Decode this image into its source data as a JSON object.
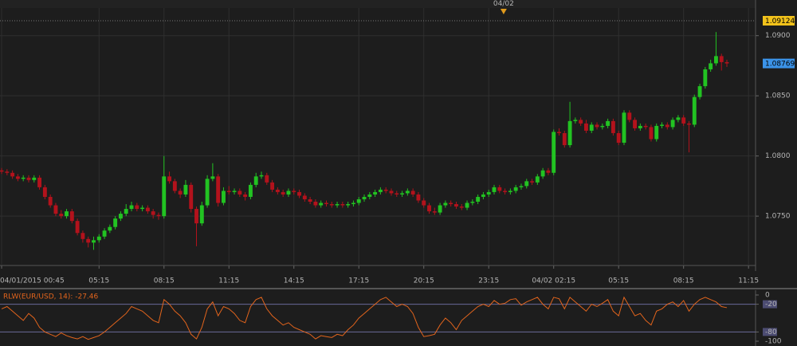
{
  "chart_data": {
    "type": "candlestick",
    "xlim": [
      -0.3,
      139.3
    ],
    "ylim": [
      1.0709,
      1.0923
    ],
    "grid": true,
    "up_color": "#22c322",
    "down_color": "#b3121c",
    "xticks": [
      {
        "value": 0,
        "label": "04/01/2015 00:45"
      },
      {
        "value": 18,
        "label": "05:15"
      },
      {
        "value": 30,
        "label": "08:15"
      },
      {
        "value": 42,
        "label": "11:15"
      },
      {
        "value": 54,
        "label": "14:15"
      },
      {
        "value": 66,
        "label": "17:15"
      },
      {
        "value": 78,
        "label": "20:15"
      },
      {
        "value": 90,
        "label": "23:15"
      },
      {
        "value": 102,
        "label": "04/02 02:15"
      },
      {
        "value": 114,
        "label": "05:15"
      },
      {
        "value": 126,
        "label": "08:15"
      },
      {
        "value": 138,
        "label": "11:15"
      }
    ],
    "yticks": [
      {
        "value": 1.075,
        "label": "1.0750"
      },
      {
        "value": 1.08,
        "label": "1.0800"
      },
      {
        "value": 1.085,
        "label": "1.0850"
      },
      {
        "value": 1.09,
        "label": "1.0900"
      }
    ],
    "day_marker": {
      "label": "04/02",
      "x": 92.75
    },
    "price_markers": [
      {
        "value": 1.09124,
        "color": "#f2c21b",
        "dotted": true
      },
      {
        "value": 1.08769,
        "color": "#3b93e8"
      }
    ],
    "ohlc": [
      [
        1.0788,
        1.079,
        1.0785,
        1.0787
      ],
      [
        1.0787,
        1.0789,
        1.0784,
        1.0786
      ],
      [
        1.0786,
        1.0788,
        1.0781,
        1.0783
      ],
      [
        1.0783,
        1.0785,
        1.0779,
        1.0781
      ],
      [
        1.0781,
        1.0784,
        1.0779,
        1.0782
      ],
      [
        1.0782,
        1.0784,
        1.0778,
        1.078
      ],
      [
        1.078,
        1.0784,
        1.0778,
        1.0782
      ],
      [
        1.0782,
        1.0784,
        1.0772,
        1.0774
      ],
      [
        1.0774,
        1.0776,
        1.0764,
        1.0766
      ],
      [
        1.0766,
        1.0768,
        1.0757,
        1.0759
      ],
      [
        1.0759,
        1.0761,
        1.075,
        1.0752
      ],
      [
        1.0752,
        1.0755,
        1.0748,
        1.075
      ],
      [
        1.075,
        1.0756,
        1.0748,
        1.0754
      ],
      [
        1.0754,
        1.0756,
        1.0744,
        1.0746
      ],
      [
        1.0746,
        1.0748,
        1.0734,
        1.0736
      ],
      [
        1.0736,
        1.0738,
        1.0728,
        1.0731
      ],
      [
        1.0731,
        1.0733,
        1.0724,
        1.0728
      ],
      [
        1.0728,
        1.0733,
        1.0722,
        1.073
      ],
      [
        1.073,
        1.0735,
        1.0728,
        1.0733
      ],
      [
        1.0733,
        1.074,
        1.0731,
        1.0738
      ],
      [
        1.0738,
        1.0743,
        1.0736,
        1.0741
      ],
      [
        1.0741,
        1.075,
        1.0739,
        1.0748
      ],
      [
        1.0748,
        1.0754,
        1.0746,
        1.0752
      ],
      [
        1.0752,
        1.076,
        1.075,
        1.0756
      ],
      [
        1.0756,
        1.0762,
        1.0754,
        1.0759
      ],
      [
        1.0759,
        1.0761,
        1.0754,
        1.0756
      ],
      [
        1.0756,
        1.0759,
        1.0754,
        1.0757
      ],
      [
        1.0757,
        1.0759,
        1.0752,
        1.0754
      ],
      [
        1.0754,
        1.0756,
        1.0748,
        1.0751
      ],
      [
        1.0751,
        1.0753,
        1.0747,
        1.075
      ],
      [
        1.075,
        1.08,
        1.0748,
        1.0783
      ],
      [
        1.0783,
        1.0787,
        1.0777,
        1.0779
      ],
      [
        1.0779,
        1.0781,
        1.0769,
        1.0771
      ],
      [
        1.0771,
        1.0773,
        1.0765,
        1.0768
      ],
      [
        1.0768,
        1.078,
        1.0766,
        1.0776
      ],
      [
        1.0776,
        1.0778,
        1.0753,
        1.0756
      ],
      [
        1.0756,
        1.0758,
        1.0725,
        1.0744
      ],
      [
        1.0744,
        1.0762,
        1.0742,
        1.0759
      ],
      [
        1.0759,
        1.0784,
        1.0757,
        1.0781
      ],
      [
        1.0781,
        1.0794,
        1.0779,
        1.0783
      ],
      [
        1.0783,
        1.0785,
        1.0758,
        1.0761
      ],
      [
        1.0761,
        1.0774,
        1.0759,
        1.0771
      ],
      [
        1.0771,
        1.0775,
        1.0768,
        1.077
      ],
      [
        1.077,
        1.0773,
        1.0768,
        1.0771
      ],
      [
        1.0771,
        1.0773,
        1.0766,
        1.0768
      ],
      [
        1.0768,
        1.077,
        1.0763,
        1.0766
      ],
      [
        1.0766,
        1.0778,
        1.0764,
        1.0776
      ],
      [
        1.0776,
        1.0786,
        1.0774,
        1.0783
      ],
      [
        1.0783,
        1.0787,
        1.0781,
        1.0784
      ],
      [
        1.0784,
        1.0786,
        1.0776,
        1.0778
      ],
      [
        1.0778,
        1.078,
        1.077,
        1.0772
      ],
      [
        1.0772,
        1.0774,
        1.0768,
        1.077
      ],
      [
        1.077,
        1.0772,
        1.0766,
        1.0768
      ],
      [
        1.0768,
        1.0773,
        1.0766,
        1.0771
      ],
      [
        1.0771,
        1.0773,
        1.0768,
        1.077
      ],
      [
        1.077,
        1.0772,
        1.0765,
        1.0767
      ],
      [
        1.0767,
        1.0769,
        1.0762,
        1.0764
      ],
      [
        1.0764,
        1.0766,
        1.076,
        1.0762
      ],
      [
        1.0762,
        1.0764,
        1.0757,
        1.0759
      ],
      [
        1.0759,
        1.0763,
        1.0757,
        1.0761
      ],
      [
        1.0761,
        1.0763,
        1.0758,
        1.076
      ],
      [
        1.076,
        1.0762,
        1.0757,
        1.0759
      ],
      [
        1.0759,
        1.0762,
        1.0757,
        1.076
      ],
      [
        1.076,
        1.0762,
        1.0757,
        1.0759
      ],
      [
        1.0759,
        1.0762,
        1.0757,
        1.076
      ],
      [
        1.076,
        1.0763,
        1.0758,
        1.0761
      ],
      [
        1.0761,
        1.0766,
        1.0759,
        1.0764
      ],
      [
        1.0764,
        1.0768,
        1.0762,
        1.0766
      ],
      [
        1.0766,
        1.077,
        1.0764,
        1.0768
      ],
      [
        1.0768,
        1.0772,
        1.0766,
        1.077
      ],
      [
        1.077,
        1.0774,
        1.0768,
        1.0772
      ],
      [
        1.0772,
        1.0774,
        1.0769,
        1.0771
      ],
      [
        1.0771,
        1.0773,
        1.0767,
        1.0769
      ],
      [
        1.0769,
        1.0771,
        1.0766,
        1.0768
      ],
      [
        1.0768,
        1.0771,
        1.0766,
        1.0769
      ],
      [
        1.0769,
        1.0773,
        1.0767,
        1.0771
      ],
      [
        1.0771,
        1.0773,
        1.0766,
        1.0768
      ],
      [
        1.0768,
        1.077,
        1.0761,
        1.0763
      ],
      [
        1.0763,
        1.0765,
        1.0757,
        1.0759
      ],
      [
        1.0759,
        1.0761,
        1.0752,
        1.0754
      ],
      [
        1.0754,
        1.0757,
        1.0751,
        1.0753
      ],
      [
        1.0753,
        1.0761,
        1.0751,
        1.0759
      ],
      [
        1.0759,
        1.0763,
        1.0757,
        1.0761
      ],
      [
        1.0761,
        1.0763,
        1.0758,
        1.076
      ],
      [
        1.076,
        1.0762,
        1.0756,
        1.0758
      ],
      [
        1.0758,
        1.076,
        1.0755,
        1.0757
      ],
      [
        1.0757,
        1.0763,
        1.0755,
        1.0761
      ],
      [
        1.0761,
        1.0764,
        1.0759,
        1.0762
      ],
      [
        1.0762,
        1.0768,
        1.076,
        1.0766
      ],
      [
        1.0766,
        1.077,
        1.0764,
        1.0768
      ],
      [
        1.0768,
        1.0772,
        1.0766,
        1.077
      ],
      [
        1.077,
        1.0776,
        1.0768,
        1.0774
      ],
      [
        1.0774,
        1.0776,
        1.0769,
        1.0771
      ],
      [
        1.0771,
        1.0773,
        1.0768,
        1.077
      ],
      [
        1.077,
        1.0773,
        1.0768,
        1.0771
      ],
      [
        1.0771,
        1.0776,
        1.0769,
        1.0774
      ],
      [
        1.0774,
        1.0777,
        1.0772,
        1.0775
      ],
      [
        1.0775,
        1.0781,
        1.0773,
        1.0779
      ],
      [
        1.0779,
        1.0781,
        1.0776,
        1.0778
      ],
      [
        1.0778,
        1.0785,
        1.0776,
        1.0783
      ],
      [
        1.0783,
        1.079,
        1.0781,
        1.0788
      ],
      [
        1.0788,
        1.079,
        1.0784,
        1.0786
      ],
      [
        1.0786,
        1.0822,
        1.0784,
        1.082
      ],
      [
        1.082,
        1.0823,
        1.0817,
        1.0819
      ],
      [
        1.0819,
        1.0821,
        1.0807,
        1.0809
      ],
      [
        1.0809,
        1.0845,
        1.0807,
        1.0829
      ],
      [
        1.0829,
        1.0832,
        1.0827,
        1.083
      ],
      [
        1.083,
        1.0832,
        1.0825,
        1.0827
      ],
      [
        1.0827,
        1.083,
        1.0819,
        1.0821
      ],
      [
        1.0821,
        1.0828,
        1.0819,
        1.0826
      ],
      [
        1.0826,
        1.0828,
        1.0822,
        1.0824
      ],
      [
        1.0824,
        1.0827,
        1.0822,
        1.0825
      ],
      [
        1.0825,
        1.0831,
        1.0823,
        1.0829
      ],
      [
        1.0829,
        1.0831,
        1.0817,
        1.0819
      ],
      [
        1.0819,
        1.0821,
        1.0809,
        1.0811
      ],
      [
        1.0811,
        1.0838,
        1.0809,
        1.0836
      ],
      [
        1.0836,
        1.0838,
        1.0828,
        1.083
      ],
      [
        1.083,
        1.0832,
        1.0821,
        1.0823
      ],
      [
        1.0823,
        1.0827,
        1.0821,
        1.0825
      ],
      [
        1.0825,
        1.0827,
        1.0822,
        1.0824
      ],
      [
        1.0824,
        1.0826,
        1.0812,
        1.0814
      ],
      [
        1.0814,
        1.0827,
        1.0812,
        1.0825
      ],
      [
        1.0825,
        1.0828,
        1.0823,
        1.0826
      ],
      [
        1.0826,
        1.0828,
        1.0822,
        1.0824
      ],
      [
        1.0824,
        1.0832,
        1.0822,
        1.083
      ],
      [
        1.083,
        1.0834,
        1.0828,
        1.0832
      ],
      [
        1.0832,
        1.0834,
        1.0825,
        1.0827
      ],
      [
        1.0827,
        1.0829,
        1.0803,
        1.0826
      ],
      [
        1.0826,
        1.0851,
        1.0824,
        1.0849
      ],
      [
        1.0849,
        1.086,
        1.0847,
        1.0858
      ],
      [
        1.0858,
        1.0874,
        1.0856,
        1.0872
      ],
      [
        1.0872,
        1.088,
        1.087,
        1.0877
      ],
      [
        1.0877,
        1.0903,
        1.0875,
        1.0883
      ],
      [
        1.0883,
        1.0885,
        1.0871,
        1.0878
      ],
      [
        1.0878,
        1.088,
        1.0874,
        1.08769
      ],
      null,
      null,
      null,
      null
    ],
    "indicator": {
      "type": "line",
      "title": "RLW(EUR/USD, 14): -27.46",
      "color": "#e2641c",
      "ylim": [
        -100,
        0
      ],
      "yticks": [
        0,
        -20,
        -80,
        -100
      ],
      "values": [
        -30,
        -25,
        -35,
        -45,
        -55,
        -40,
        -50,
        -70,
        -80,
        -85,
        -90,
        -82,
        -88,
        -92,
        -95,
        -90,
        -96,
        -92,
        -88,
        -80,
        -70,
        -60,
        -50,
        -40,
        -25,
        -30,
        -35,
        -45,
        -55,
        -60,
        -10,
        -20,
        -35,
        -45,
        -60,
        -85,
        -95,
        -70,
        -30,
        -15,
        -45,
        -25,
        -30,
        -40,
        -55,
        -60,
        -25,
        -10,
        -5,
        -30,
        -45,
        -55,
        -65,
        -60,
        -70,
        -75,
        -80,
        -85,
        -95,
        -88,
        -90,
        -92,
        -85,
        -88,
        -75,
        -65,
        -50,
        -40,
        -30,
        -20,
        -10,
        -5,
        -15,
        -25,
        -20,
        -25,
        -40,
        -70,
        -90,
        -88,
        -85,
        -65,
        -50,
        -60,
        -75,
        -55,
        -45,
        -35,
        -25,
        -20,
        -25,
        -12,
        -20,
        -18,
        -10,
        -8,
        -22,
        -15,
        -10,
        -5,
        -20,
        -30,
        -5,
        -8,
        -30,
        -5,
        -15,
        -25,
        -35,
        -20,
        -25,
        -18,
        -10,
        -35,
        -45,
        -5,
        -25,
        -45,
        -40,
        -55,
        -65,
        -35,
        -30,
        -20,
        -15,
        -25,
        -12,
        -35,
        -20,
        -10,
        -5,
        -10,
        -15,
        -25,
        -27.46,
        null,
        null,
        null,
        null
      ]
    }
  }
}
